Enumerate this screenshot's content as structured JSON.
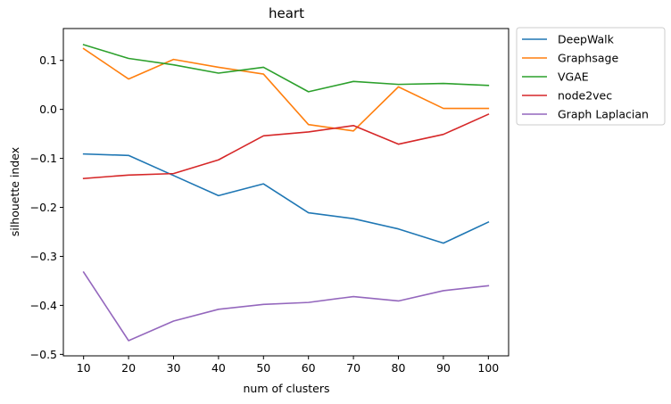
{
  "chart_data": {
    "type": "line",
    "title": "heart",
    "xlabel": "num of clusters",
    "ylabel": "silhouette index",
    "x": [
      10,
      20,
      30,
      40,
      50,
      60,
      70,
      80,
      90,
      100
    ],
    "xticks": [
      "10",
      "20",
      "30",
      "40",
      "50",
      "60",
      "70",
      "80",
      "90",
      "100"
    ],
    "yticks": [
      -0.5,
      -0.4,
      -0.3,
      -0.2,
      -0.1,
      0.0,
      0.1
    ],
    "ytick_labels": [
      "−0.5",
      "−0.4",
      "−0.3",
      "−0.2",
      "−0.1",
      "0.0",
      "0.1"
    ],
    "xlim": [
      5.5,
      104.5
    ],
    "ylim": [
      -0.503,
      0.165
    ],
    "grid": false,
    "legend_placement": "outside-right-top",
    "series": [
      {
        "name": "DeepWalk",
        "color": "#1f77b4",
        "values": [
          -0.091,
          -0.094,
          -0.135,
          -0.176,
          -0.152,
          -0.211,
          -0.223,
          -0.244,
          -0.273,
          -0.23
        ]
      },
      {
        "name": "Graphsage",
        "color": "#ff7f0e",
        "values": [
          0.124,
          0.062,
          0.102,
          0.086,
          0.072,
          -0.031,
          -0.044,
          0.046,
          0.002,
          0.002
        ]
      },
      {
        "name": "VGAE",
        "color": "#2ca02c",
        "values": [
          0.132,
          0.104,
          0.091,
          0.074,
          0.086,
          0.036,
          0.057,
          0.051,
          0.053,
          0.049
        ]
      },
      {
        "name": "node2vec",
        "color": "#d62728",
        "values": [
          -0.141,
          -0.134,
          -0.131,
          -0.103,
          -0.054,
          -0.046,
          -0.033,
          -0.071,
          -0.051,
          -0.01
        ]
      },
      {
        "name": "Graph Laplacian",
        "color": "#9467bd",
        "values": [
          -0.332,
          -0.472,
          -0.432,
          -0.408,
          -0.398,
          -0.394,
          -0.382,
          -0.391,
          -0.37,
          -0.36
        ]
      }
    ]
  }
}
